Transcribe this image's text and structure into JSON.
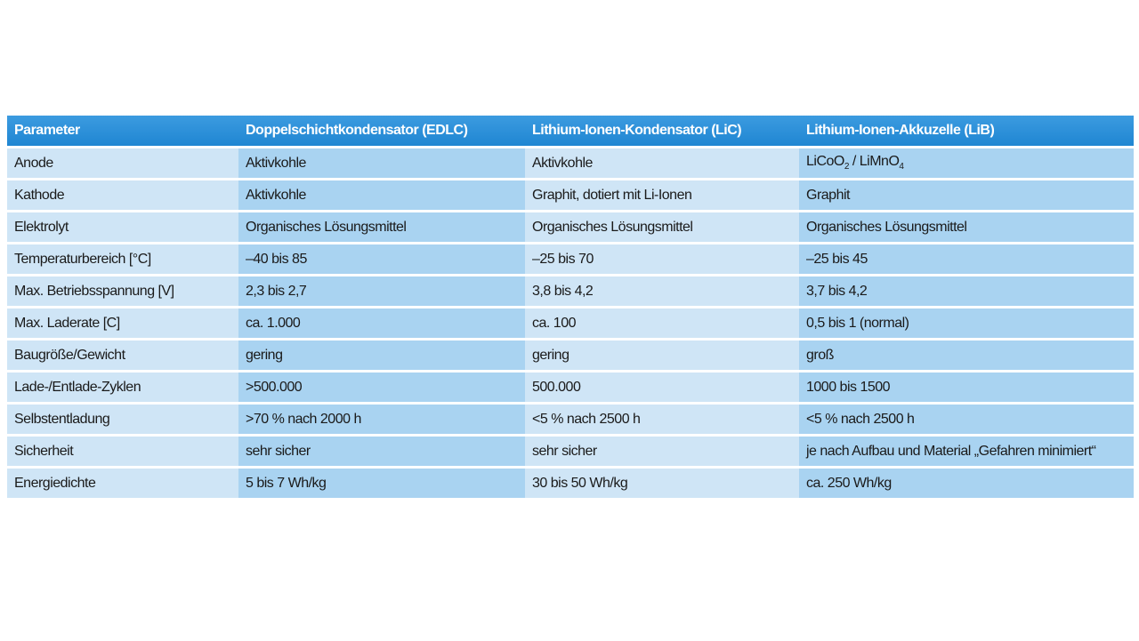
{
  "headers": [
    "Parameter",
    "Doppelschichtkondensator (EDLC)",
    "Lithium-Ionen-Kondensator (LiC)",
    "Lithium-Ionen-Akkuzelle (LiB)"
  ],
  "rows": [
    [
      "Anode",
      "Aktivkohle",
      "Aktivkohle",
      "LiCoO2 / LiMnO4"
    ],
    [
      "Kathode",
      "Aktivkohle",
      "Graphit, dotiert mit Li-Ionen",
      "Graphit"
    ],
    [
      "Elektrolyt",
      "Organisches Lösungsmittel",
      "Organisches Lösungsmittel",
      "Organisches Lösungsmittel"
    ],
    [
      "Temperaturbereich [°C]",
      "–40 bis 85",
      "–25 bis 70",
      "–25 bis 45"
    ],
    [
      "Max. Betriebsspannung [V]",
      "2,3 bis 2,7",
      "3,8 bis 4,2",
      "3,7 bis 4,2"
    ],
    [
      "Max. Laderate [C]",
      "ca. 1.000",
      "ca. 100",
      "0,5 bis 1 (normal)"
    ],
    [
      "Baugröße/Gewicht",
      "gering",
      "gering",
      "groß"
    ],
    [
      "Lade-/Entlade-Zyklen",
      ">500.000",
      "500.000",
      "1000 bis 1500"
    ],
    [
      "Selbstentladung",
      ">70 % nach 2000 h",
      "<5 % nach 2500 h",
      "<5 % nach 2500 h"
    ],
    [
      "Sicherheit",
      "sehr sicher",
      "sehr sicher",
      "je nach Aufbau und Material „Gefahren minimiert“"
    ],
    [
      "Energiedichte",
      "5 bis 7 Wh/kg",
      "30 bis 50 Wh/kg",
      "ca. 250 Wh/kg"
    ]
  ],
  "colors": {
    "header": "#2589d4",
    "light": "#cfe5f6",
    "dark": "#a9d3f1"
  }
}
